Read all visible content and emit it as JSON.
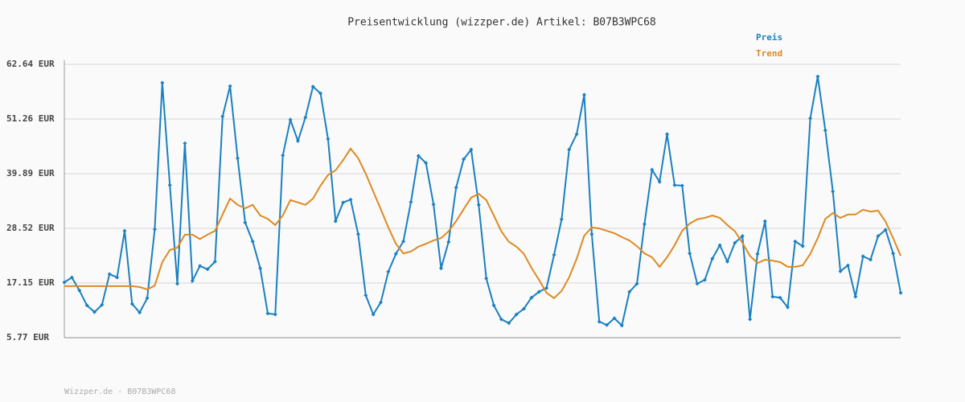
{
  "chart_data": {
    "type": "line",
    "title": "Preisentwicklung (wizzper.de) Artikel: B07B3WPC68",
    "footer": "Wizzper.de - B07B3WPC68",
    "ylim": [
      5.77,
      62.64
    ],
    "yticks": [
      {
        "value": 5.77,
        "label": "5.77 EUR"
      },
      {
        "value": 17.15,
        "label": "17.15 EUR"
      },
      {
        "value": 28.52,
        "label": "28.52 EUR"
      },
      {
        "value": 39.89,
        "label": "39.89 EUR"
      },
      {
        "value": 51.26,
        "label": "51.26 EUR"
      },
      {
        "value": 62.64,
        "label": "62.64 EUR"
      }
    ],
    "grid": true,
    "legend": "top-right",
    "series": [
      {
        "name": "Preis",
        "color": "#1a80c0",
        "markers": true,
        "values": [
          17.3,
          18.3,
          15.6,
          12.5,
          11.1,
          12.6,
          19.0,
          18.3,
          28.0,
          12.8,
          11.0,
          14.0,
          28.3,
          58.8,
          37.5,
          17.0,
          46.2,
          17.6,
          20.7,
          20.0,
          21.6,
          51.8,
          58.1,
          43.1,
          29.7,
          25.8,
          20.2,
          10.8,
          10.6,
          43.7,
          51.1,
          46.7,
          51.6,
          58.0,
          56.6,
          47.1,
          30.0,
          33.9,
          34.5,
          27.3,
          14.6,
          10.6,
          13.1,
          19.5,
          23.2,
          25.8,
          34.0,
          43.6,
          42.1,
          33.5,
          20.2,
          25.7,
          37.0,
          42.9,
          44.9,
          33.4,
          18.1,
          12.5,
          9.6,
          8.8,
          10.6,
          11.8,
          14.1,
          15.3,
          16.1,
          23.0,
          30.4,
          44.9,
          48.1,
          56.3,
          27.3,
          9.1,
          8.4,
          9.8,
          8.3,
          15.3,
          17.0,
          29.4,
          40.7,
          38.2,
          48.1,
          37.5,
          37.4,
          23.3,
          17.0,
          17.8,
          22.2,
          25.0,
          21.6,
          25.5,
          26.9,
          9.6,
          23.2,
          30.0,
          14.3,
          14.1,
          12.1,
          25.8,
          24.8,
          51.4,
          60.1,
          48.9,
          36.2,
          19.6,
          20.8,
          14.3,
          22.7,
          22.0,
          26.9,
          28.2,
          23.3,
          15.1
        ]
      },
      {
        "name": "Trend",
        "color": "#dd8a22",
        "markers": false,
        "values": [
          16.5,
          16.5,
          16.5,
          16.5,
          16.5,
          16.5,
          16.5,
          16.5,
          16.5,
          16.5,
          16.3,
          15.8,
          16.6,
          21.5,
          24.0,
          24.5,
          27.2,
          27.2,
          26.3,
          27.2,
          28.0,
          31.4,
          34.7,
          33.4,
          32.7,
          33.4,
          31.2,
          30.5,
          29.2,
          31.2,
          34.4,
          33.9,
          33.4,
          34.7,
          37.4,
          39.6,
          40.6,
          42.7,
          45.1,
          43.1,
          39.9,
          36.2,
          32.5,
          28.7,
          25.3,
          23.3,
          23.7,
          24.7,
          25.3,
          26.0,
          26.5,
          27.9,
          30.0,
          32.5,
          34.9,
          35.7,
          34.4,
          31.2,
          27.9,
          25.7,
          24.7,
          23.2,
          20.3,
          17.8,
          15.1,
          14.0,
          15.5,
          18.3,
          22.2,
          27.0,
          28.7,
          28.5,
          28.0,
          27.5,
          26.7,
          26.0,
          24.8,
          23.3,
          22.5,
          20.5,
          22.5,
          25.0,
          28.0,
          29.5,
          30.4,
          30.7,
          31.2,
          30.7,
          29.2,
          27.9,
          25.5,
          22.8,
          21.3,
          22.0,
          21.8,
          21.5,
          20.5,
          20.5,
          20.8,
          23.2,
          26.5,
          30.5,
          31.7,
          30.7,
          31.4,
          31.4,
          32.4,
          32.0,
          32.2,
          29.9,
          26.5,
          22.8
        ]
      }
    ]
  }
}
